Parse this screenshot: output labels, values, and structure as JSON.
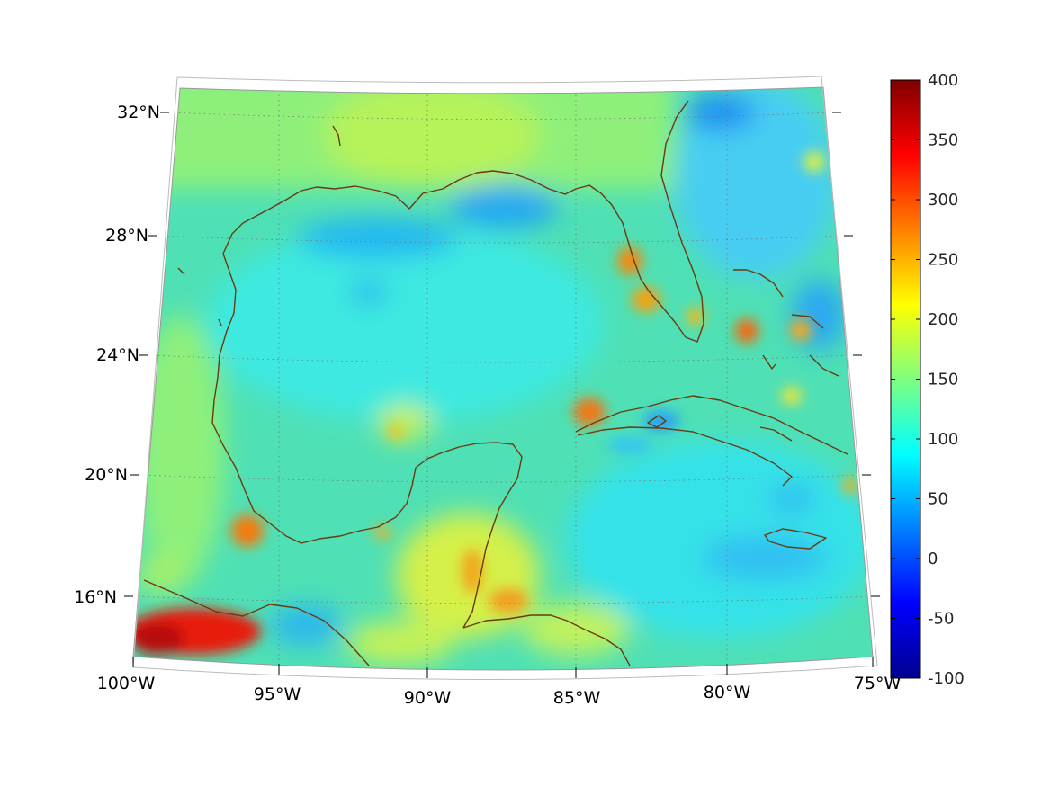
{
  "map": {
    "projection": "lambert-conformal-conic",
    "extent": {
      "lon": [
        -100,
        -75
      ],
      "lat": [
        14,
        32.5
      ]
    },
    "coast_color": "#6b3a0e",
    "grid": "on",
    "grid_style": "dotted"
  },
  "axes": {
    "lat_ticks": [
      "32°N",
      "28°N",
      "24°N",
      "20°N",
      "16°N"
    ],
    "lon_ticks": [
      "100°W",
      "95°W",
      "90°W",
      "85°W",
      "80°W",
      "75°W"
    ]
  },
  "colorbar": {
    "colormap": "jet",
    "min": -100,
    "max": 400,
    "ticks": [
      "400",
      "350",
      "300",
      "250",
      "200",
      "150",
      "100",
      "50",
      "0",
      "-50",
      "-100"
    ]
  }
}
